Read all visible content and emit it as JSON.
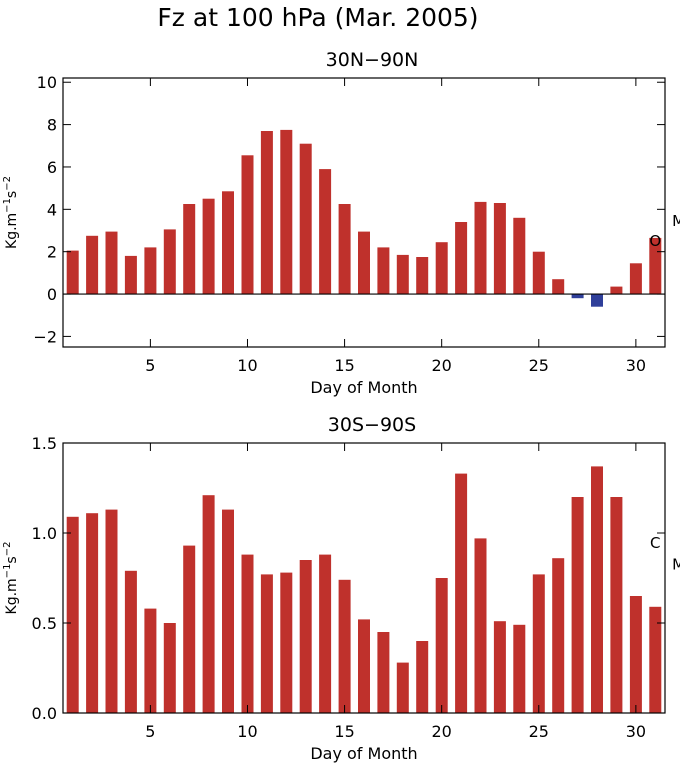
{
  "figure_title": "Fz at 100 hPa (Mar. 2005)",
  "colors": {
    "positive": "#bf312c",
    "negative": "#2f3f9a",
    "axis": "#000000"
  },
  "chart_data": [
    {
      "type": "bar",
      "title": "30N−90N",
      "xlabel": "Day of Month",
      "ylabel_base": "Kg.m",
      "ylabel_exp1": "−1",
      "ylabel_mid": "s",
      "ylabel_exp2": "−2",
      "xlim": [
        0.5,
        31.5
      ],
      "ylim": [
        -2.5,
        10.2
      ],
      "xticks": [
        5,
        10,
        15,
        20,
        25,
        30
      ],
      "yticks": [
        -2,
        0,
        2,
        4,
        6,
        8,
        10
      ],
      "ytick_labels": [
        "−2",
        "0",
        "2",
        "4",
        "6",
        "8",
        "10"
      ],
      "zero_line": true,
      "grid": false,
      "x": [
        1,
        2,
        3,
        4,
        5,
        6,
        7,
        8,
        9,
        10,
        11,
        12,
        13,
        14,
        15,
        16,
        17,
        18,
        19,
        20,
        21,
        22,
        23,
        24,
        25,
        26,
        27,
        28,
        29,
        30,
        31
      ],
      "values": [
        2.05,
        2.75,
        2.95,
        1.8,
        2.2,
        3.05,
        4.25,
        4.5,
        4.85,
        6.55,
        7.7,
        7.75,
        7.1,
        5.9,
        4.25,
        2.95,
        2.2,
        1.85,
        1.75,
        2.45,
        3.4,
        4.35,
        4.3,
        3.6,
        2.0,
        0.7,
        -0.2,
        -0.6,
        0.35,
        1.45,
        2.65
      ],
      "annotations": [
        {
          "text": "M",
          "day": 32.2,
          "value": 3.5
        },
        {
          "text": "O",
          "day": 31.0,
          "value": 2.55
        }
      ]
    },
    {
      "type": "bar",
      "title": "30S−90S",
      "xlabel": "Day of Month",
      "ylabel_base": "Kg.m",
      "ylabel_exp1": "−1",
      "ylabel_mid": "s",
      "ylabel_exp2": "−2",
      "xlim": [
        0.5,
        31.5
      ],
      "ylim": [
        0.0,
        1.5
      ],
      "xticks": [
        5,
        10,
        15,
        20,
        25,
        30
      ],
      "yticks": [
        0.0,
        0.5,
        1.0,
        1.5
      ],
      "ytick_labels": [
        "0.0",
        "0.5",
        "1.0",
        "1.5"
      ],
      "zero_line": false,
      "grid": false,
      "x": [
        1,
        2,
        3,
        4,
        5,
        6,
        7,
        8,
        9,
        10,
        11,
        12,
        13,
        14,
        15,
        16,
        17,
        18,
        19,
        20,
        21,
        22,
        23,
        24,
        25,
        26,
        27,
        28,
        29,
        30,
        31
      ],
      "values": [
        1.09,
        1.11,
        1.13,
        0.79,
        0.58,
        0.5,
        0.93,
        1.21,
        1.13,
        0.88,
        0.77,
        0.78,
        0.85,
        0.88,
        0.74,
        0.52,
        0.45,
        0.28,
        0.4,
        0.75,
        1.33,
        0.97,
        0.51,
        0.49,
        0.77,
        0.86,
        1.2,
        1.37,
        1.2,
        0.65,
        0.59
      ],
      "annotations": [
        {
          "text": "C",
          "day": 31.0,
          "value": 0.95
        },
        {
          "text": "M",
          "day": 32.2,
          "value": 0.83
        }
      ]
    }
  ]
}
